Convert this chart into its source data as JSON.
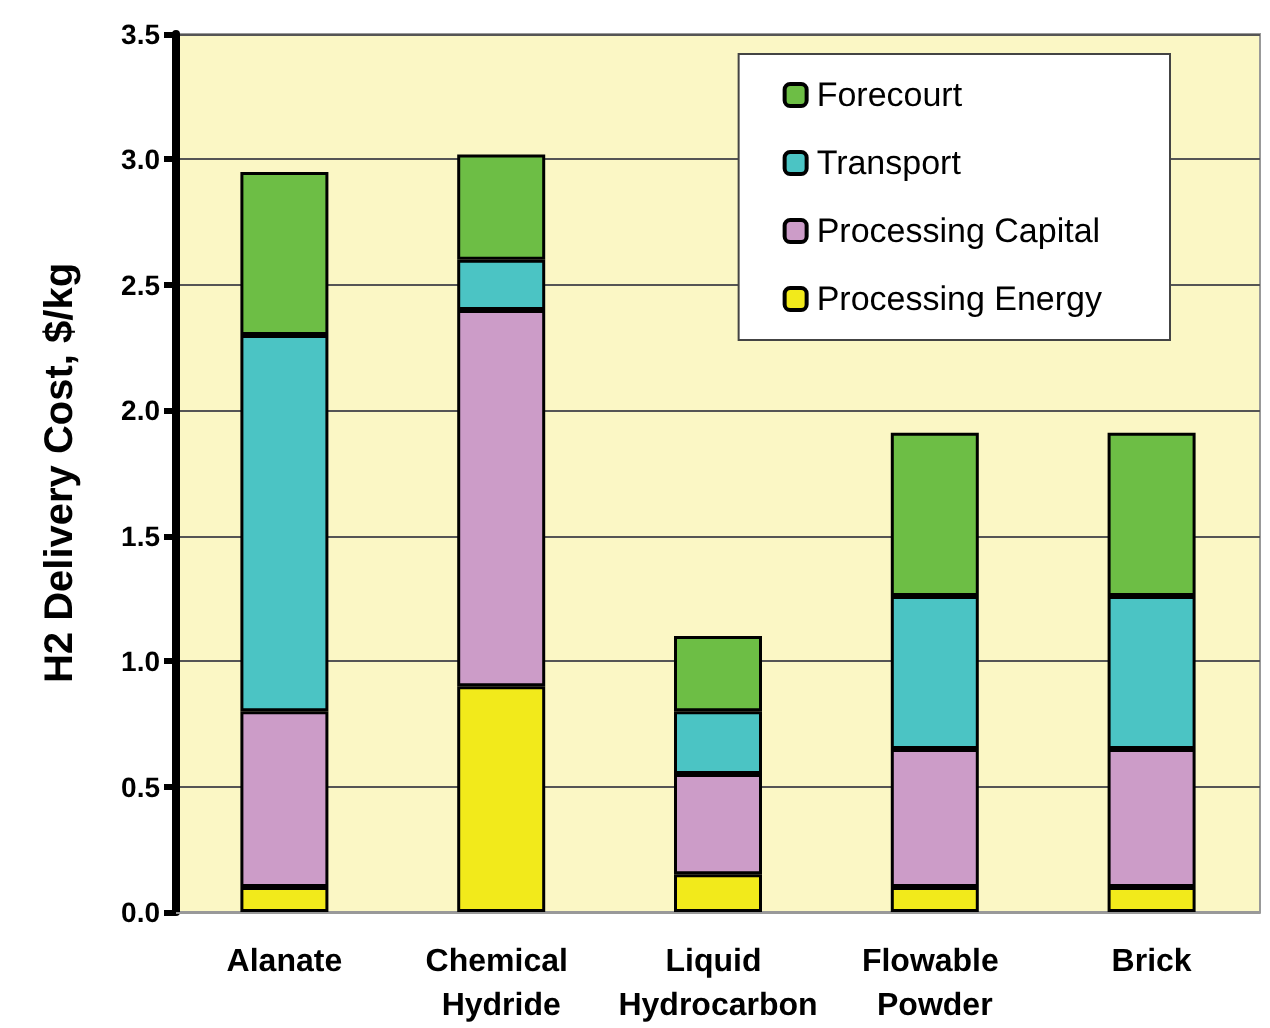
{
  "chart_data": {
    "type": "bar",
    "stacked": true,
    "ylabel": "H2 Delivery Cost, $/kg",
    "categories": [
      "Alanate",
      "Chemical Hydride",
      "Liquid Hydrocarbon",
      "Flowable Powder",
      "Brick"
    ],
    "series": [
      {
        "name": "Processing Energy",
        "color": "#f2ea1b",
        "values": [
          0.1,
          0.9,
          0.15,
          0.1,
          0.1
        ]
      },
      {
        "name": "Processing Capital",
        "color": "#cc9cc8",
        "values": [
          0.7,
          1.5,
          0.4,
          0.55,
          0.55
        ]
      },
      {
        "name": "Transport",
        "color": "#4bc4c4",
        "values": [
          1.5,
          0.2,
          0.25,
          0.61,
          0.61
        ]
      },
      {
        "name": "Forecourt",
        "color": "#6dbe45",
        "values": [
          0.65,
          0.42,
          0.3,
          0.65,
          0.65
        ]
      }
    ],
    "ylim": [
      0,
      3.5
    ],
    "yticks": [
      {
        "value": 0,
        "label": "0.0"
      },
      {
        "value": 0.5,
        "label": "0.5"
      },
      {
        "value": 1,
        "label": "1.0"
      },
      {
        "value": 1.5,
        "label": "1.5"
      },
      {
        "value": 2,
        "label": "2.0"
      },
      {
        "value": 2.5,
        "label": "2.5"
      },
      {
        "value": 3,
        "label": "3.0"
      },
      {
        "value": 3.5,
        "label": "3.5"
      }
    ],
    "grid": "y",
    "legend": "top right"
  }
}
